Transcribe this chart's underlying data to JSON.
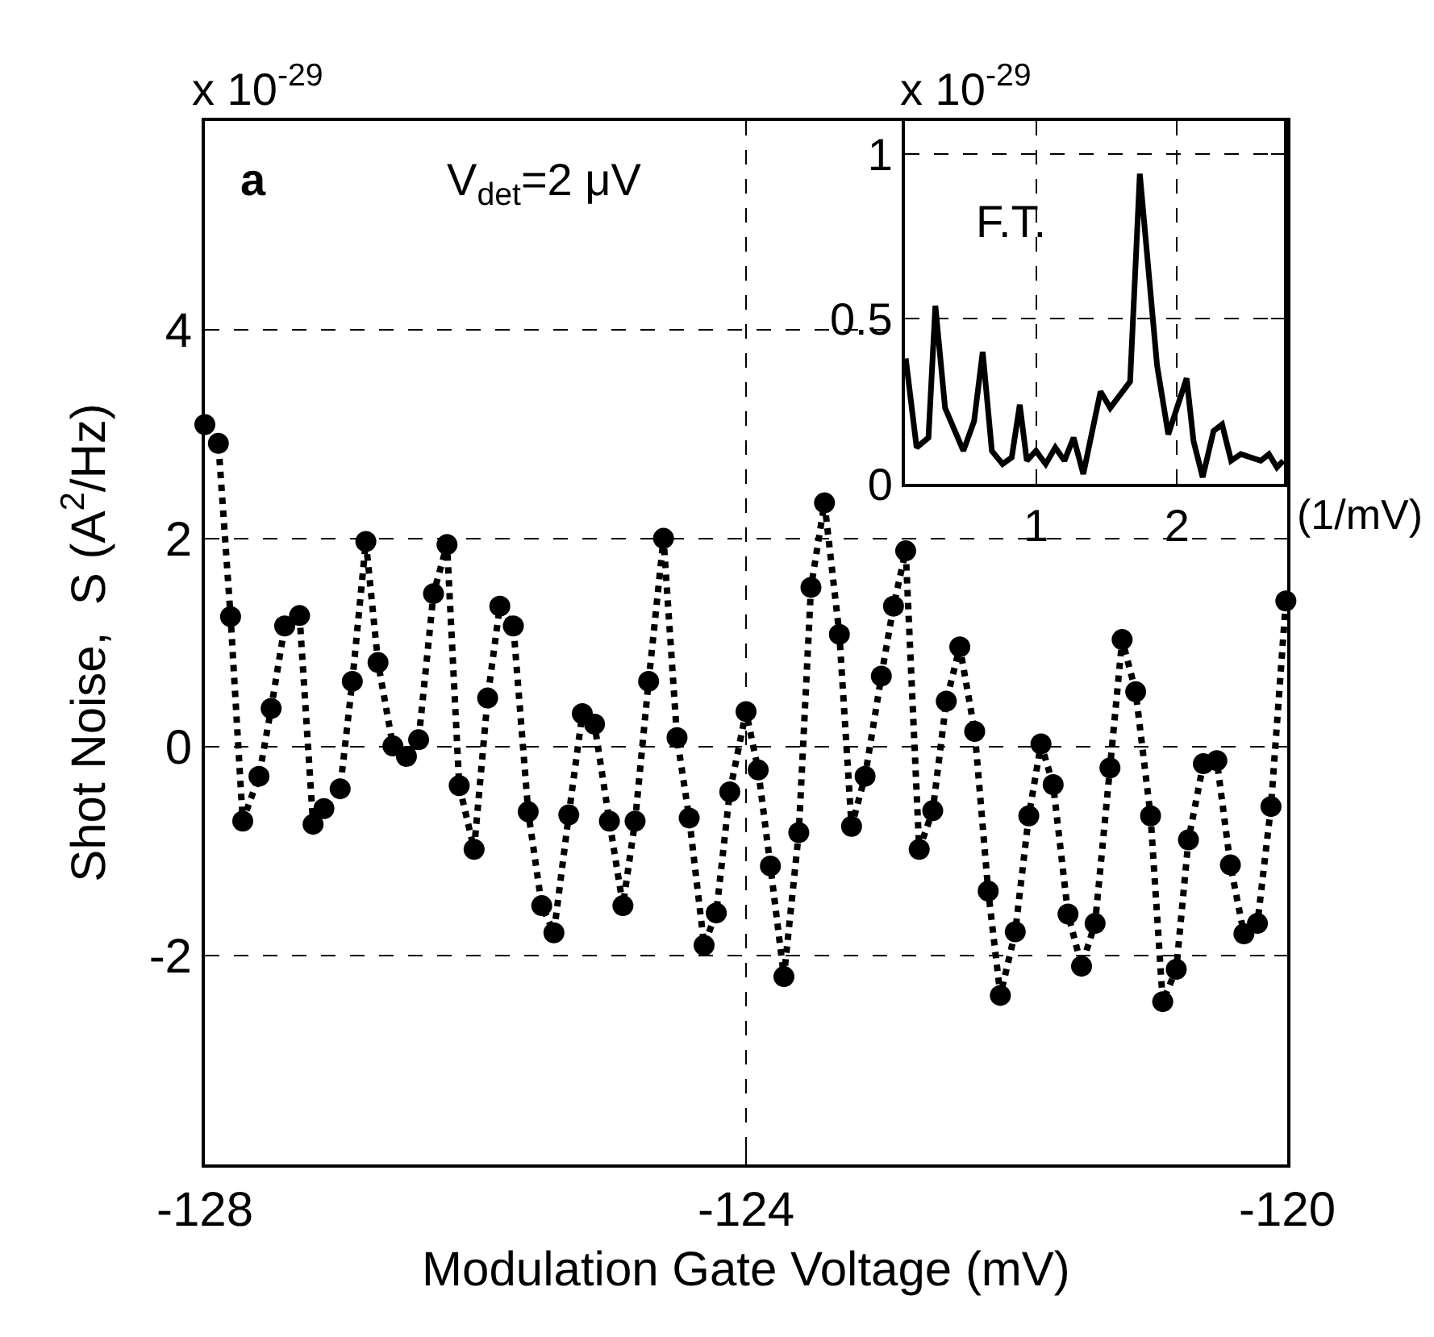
{
  "chart_data": [
    {
      "type": "line",
      "xlabel": "Modulation Gate Voltage (mV)",
      "ylabel": "Shot Noise,  S (A$^{2}$/Hz)",
      "color": "#000000",
      "marker": "circle",
      "line_style": "dotted",
      "grid": true,
      "xlim": [
        -128,
        -120
      ],
      "xticks": [
        -128,
        -124,
        -120
      ],
      "ylim": [
        -4,
        6
      ],
      "yticks": [
        -2,
        0,
        2,
        4
      ],
      "annotations": [
        "x 10$^{-29}$",
        "a",
        "V$_{det}$=2 μV"
      ],
      "x": [
        -128.0,
        -127.9,
        -127.81,
        -127.72,
        -127.6,
        -127.51,
        -127.41,
        -127.3,
        -127.2,
        -127.12,
        -127.0,
        -126.91,
        -126.81,
        -126.72,
        -126.61,
        -126.51,
        -126.42,
        -126.31,
        -126.21,
        -126.12,
        -126.01,
        -125.91,
        -125.82,
        -125.72,
        -125.61,
        -125.51,
        -125.42,
        -125.31,
        -125.21,
        -125.12,
        -125.01,
        -124.91,
        -124.82,
        -124.72,
        -124.61,
        -124.51,
        -124.42,
        -124.31,
        -124.22,
        -124.12,
        -124.0,
        -123.91,
        -123.82,
        -123.72,
        -123.61,
        -123.52,
        -123.42,
        -123.31,
        -123.22,
        -123.12,
        -123.0,
        -122.91,
        -122.82,
        -122.72,
        -122.62,
        -122.52,
        -122.42,
        -122.31,
        -122.21,
        -122.12,
        -122.01,
        -121.91,
        -121.82,
        -121.73,
        -121.62,
        -121.52,
        -121.42,
        -121.31,
        -121.22,
        -121.12,
        -121.01,
        -120.92,
        -120.82,
        -120.73,
        -120.62,
        -120.52,
        -120.42,
        -120.32,
        -120.22,
        -120.12,
        -120.01
      ],
      "values": [
        3.09,
        2.91,
        1.25,
        -0.71,
        -0.28,
        0.37,
        1.16,
        1.26,
        -0.74,
        -0.59,
        -0.4,
        0.63,
        1.97,
        0.81,
        0.01,
        -0.09,
        0.07,
        1.47,
        1.94,
        -0.37,
        -0.98,
        0.47,
        1.35,
        1.16,
        -0.62,
        -1.52,
        -1.78,
        -0.65,
        0.32,
        0.22,
        -0.71,
        -1.52,
        -0.71,
        0.63,
        2.0,
        0.09,
        -0.68,
        -1.9,
        -1.59,
        -0.43,
        0.34,
        -0.22,
        -1.14,
        -2.2,
        -0.82,
        1.53,
        2.34,
        1.08,
        -0.76,
        -0.28,
        0.68,
        1.35,
        1.88,
        -0.98,
        -0.61,
        0.44,
        0.96,
        0.15,
        -1.38,
        -2.38,
        -1.77,
        -0.66,
        0.03,
        -0.36,
        -1.6,
        -2.1,
        -1.69,
        -0.2,
        1.03,
        0.53,
        -0.66,
        -2.44,
        -2.13,
        -0.89,
        -0.16,
        -0.13,
        -1.13,
        -1.79,
        -1.69,
        -0.57,
        1.4
      ]
    },
    {
      "type": "line",
      "xlabel": "(1/mV)",
      "color": "#000000",
      "line_style": "solid",
      "grid": true,
      "xlim": [
        0.07,
        2.76
      ],
      "xticks": [
        1,
        2
      ],
      "ylim": [
        0,
        1.1
      ],
      "yticks": [
        0,
        0.5,
        1
      ],
      "annotations": [
        "x 10$^{-29}$",
        "F.T."
      ],
      "x": [
        0.076,
        0.153,
        0.237,
        0.286,
        0.355,
        0.485,
        0.561,
        0.622,
        0.687,
        0.763,
        0.828,
        0.885,
        0.935,
        1.0,
        1.069,
        1.137,
        1.202,
        1.267,
        1.336,
        1.458,
        1.527,
        1.668,
        1.737,
        1.859,
        1.939,
        2.069,
        2.118,
        2.183,
        2.26,
        2.321,
        2.385,
        2.454,
        2.595,
        2.653,
        2.71,
        2.755
      ],
      "values": [
        0.38,
        0.11,
        0.14,
        0.54,
        0.23,
        0.1,
        0.19,
        0.4,
        0.1,
        0.06,
        0.08,
        0.24,
        0.07,
        0.1,
        0.06,
        0.11,
        0.07,
        0.14,
        0.03,
        0.28,
        0.23,
        0.31,
        0.94,
        0.36,
        0.15,
        0.32,
        0.13,
        0.02,
        0.16,
        0.18,
        0.07,
        0.09,
        0.07,
        0.09,
        0.05,
        0.07
      ]
    }
  ]
}
